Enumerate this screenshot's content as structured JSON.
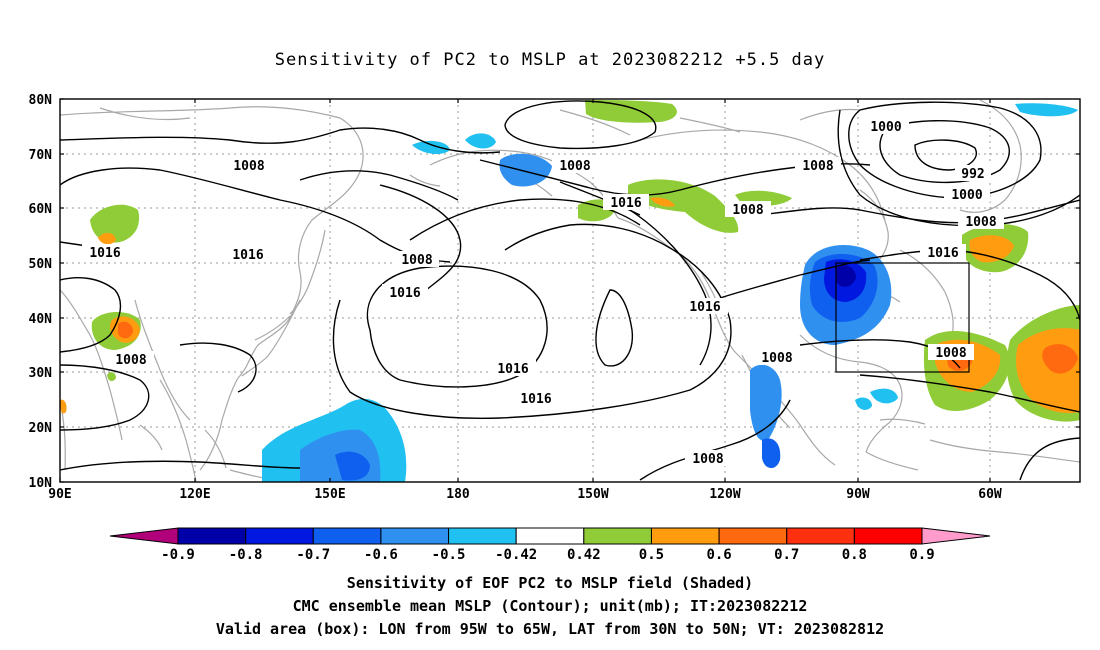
{
  "title": "Sensitivity of PC2 to MSLP at 2023082212 +5.5 day",
  "lat_labels": [
    "80N",
    "70N",
    "60N",
    "50N",
    "40N",
    "30N",
    "20N",
    "10N"
  ],
  "lon_labels": [
    "90E",
    "120E",
    "150E",
    "180",
    "150W",
    "120W",
    "90W",
    "60W"
  ],
  "contour_labels": {
    "c_992": "992",
    "c_1000a": "1000",
    "c_1000b": "1000",
    "c_1008_1": "1008",
    "c_1008_2": "1008",
    "c_1008_3": "1008",
    "c_1008_4": "1008",
    "c_1008_5": "1008",
    "c_1008_6": "1008",
    "c_1008_7": "1008",
    "c_1008_8": "1008",
    "c_1008_9": "1008",
    "c_1008_10": "1008",
    "c_1016_1": "1016",
    "c_1016_2": "1016",
    "c_1016_3": "1016",
    "c_1016_4": "1016",
    "c_1016_5": "1016",
    "c_1016_6": "1016",
    "c_1016_7": "1016",
    "c_1016_8": "1016"
  },
  "colorbar": {
    "labels": [
      "-0.9",
      "-0.8",
      "-0.7",
      "-0.6",
      "-0.5",
      "-0.42",
      "0.42",
      "0.5",
      "0.6",
      "0.7",
      "0.8",
      "0.9"
    ],
    "colors": [
      "#b0007a",
      "#0000a8",
      "#0018e0",
      "#1060f0",
      "#3090f0",
      "#20c0f0",
      "#ffffff",
      "#90cc38",
      "#ff9c10",
      "#ff6a10",
      "#ff3010",
      "#ff0000",
      "#ff9ccc"
    ]
  },
  "caption": {
    "line1": "Sensitivity of EOF PC2 to MSLP field (Shaded)",
    "line2": "CMC ensemble mean MSLP (Contour); unit(mb); IT:2023082212",
    "line3": "Valid area (box): LON from 95W to 65W, LAT from 30N to 50N; VT: 2023082812"
  }
}
